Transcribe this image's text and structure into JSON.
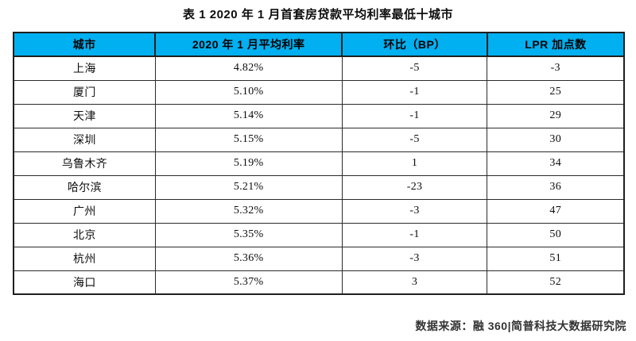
{
  "title": "表 1  2020 年 1 月首套房贷款平均利率最低十城市",
  "chart_data": {
    "type": "table",
    "title": "表 1  2020 年 1 月首套房贷款平均利率最低十城市",
    "columns": [
      "城市",
      "2020 年 1 月平均利率",
      "环比（BP）",
      "LPR 加点数"
    ],
    "rows": [
      [
        "上海",
        "4.82%",
        "-5",
        "-3"
      ],
      [
        "厦门",
        "5.10%",
        "-1",
        "25"
      ],
      [
        "天津",
        "5.14%",
        "-1",
        "29"
      ],
      [
        "深圳",
        "5.15%",
        "-5",
        "30"
      ],
      [
        "乌鲁木齐",
        "5.19%",
        "1",
        "34"
      ],
      [
        "哈尔滨",
        "5.21%",
        "-23",
        "36"
      ],
      [
        "广州",
        "5.32%",
        "-3",
        "47"
      ],
      [
        "北京",
        "5.35%",
        "-1",
        "50"
      ],
      [
        "杭州",
        "5.36%",
        "-3",
        "51"
      ],
      [
        "海口",
        "5.37%",
        "3",
        "52"
      ]
    ],
    "source_note": "数据来源：融 360|简普科技大数据研究院"
  },
  "footer": {
    "source": "数据来源：融 360|简普科技大数据研究院"
  },
  "colors": {
    "header_bg": "#00b0f0",
    "border": "#1f1f1f",
    "page_bg": "#ffffff",
    "footer_text": "#333333"
  }
}
